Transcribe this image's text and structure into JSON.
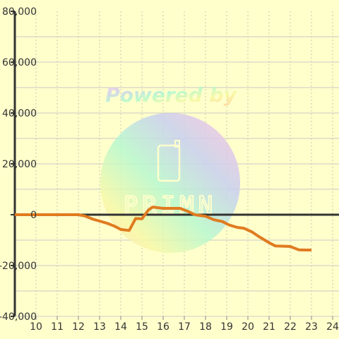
{
  "watermark": {
    "powered_text": "Powered by",
    "brand_text": "PRIMN"
  },
  "colors": {
    "background": "#ffffcc",
    "grid_major": "#c8c8c8",
    "grid_minor": "#c8c8b0",
    "axis": "#333333",
    "zero_line": "#333333",
    "series": "#e07b20"
  },
  "chart_data": {
    "type": "line",
    "title": "",
    "xlabel": "",
    "ylabel": "",
    "xlim": [
      9,
      24.3
    ],
    "ylim": [
      -40000,
      80000
    ],
    "x_ticks": [
      10,
      11,
      12,
      13,
      14,
      15,
      16,
      17,
      18,
      19,
      20,
      21,
      22,
      23,
      24
    ],
    "x_tick_labels": [
      "10",
      "11",
      "12",
      "13",
      "14",
      "15",
      "16",
      "17",
      "18",
      "19",
      "20",
      "21",
      "22",
      "23",
      "24"
    ],
    "y_ticks": [
      -40000,
      -20000,
      0,
      20000,
      40000,
      60000,
      80000
    ],
    "y_tick_labels": [
      "-40,000",
      "-20,000",
      "0",
      "20,000",
      "40,000",
      "60,000",
      "80,000"
    ],
    "grid": true,
    "legend": "none",
    "series": [
      {
        "x": [
          9.0,
          10.0,
          11.0,
          12.0,
          12.3,
          12.7,
          13.0,
          13.4,
          13.7,
          14.0,
          14.4,
          14.7,
          15.0,
          15.3,
          15.5,
          16.0,
          16.5,
          16.8,
          17.2,
          17.5,
          17.8,
          18.0,
          18.4,
          18.8,
          19.1,
          19.5,
          19.8,
          20.2,
          20.5,
          21.0,
          21.3,
          21.7,
          22.0,
          22.4,
          22.7,
          23.0
        ],
        "y": [
          0,
          0,
          0,
          0,
          -500,
          -1800,
          -2500,
          -3500,
          -4500,
          -5800,
          -6200,
          -1500,
          -1600,
          1800,
          3000,
          2500,
          2500,
          2500,
          1200,
          0,
          -400,
          -600,
          -2000,
          -2700,
          -4000,
          -5000,
          -5300,
          -6800,
          -8500,
          -11000,
          -12300,
          -12400,
          -12500,
          -13800,
          -13900,
          -13900
        ]
      }
    ]
  }
}
